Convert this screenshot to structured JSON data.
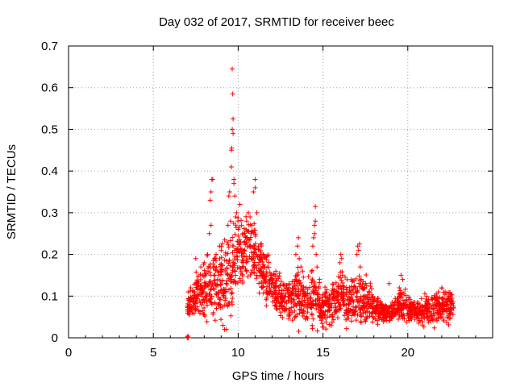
{
  "chart_data": {
    "type": "scatter",
    "title": "Day 032 of 2017, SRMTID for receiver beec",
    "xlabel": "GPS time / hours",
    "ylabel": "SRMTID / TECUs",
    "xlim": [
      0,
      25
    ],
    "ylim": [
      0,
      0.7
    ],
    "x_ticks": [
      0,
      5,
      10,
      15,
      20
    ],
    "x_tick_labels": [
      "0",
      "5",
      "10",
      "15",
      "20"
    ],
    "y_ticks": [
      0,
      0.1,
      0.2,
      0.3,
      0.4,
      0.5,
      0.6,
      0.7
    ],
    "y_tick_labels": [
      "0",
      "0.1",
      "0.2",
      "0.3",
      "0.4",
      "0.5",
      "0.6",
      "0.7"
    ],
    "grid": true,
    "marker": "+",
    "color": "#ff0000",
    "seed": 32,
    "envelope": [
      [
        7.0,
        0.07,
        0.03
      ],
      [
        7.5,
        0.1,
        0.04
      ],
      [
        8.0,
        0.11,
        0.05
      ],
      [
        8.5,
        0.13,
        0.07
      ],
      [
        9.0,
        0.12,
        0.07
      ],
      [
        9.5,
        0.15,
        0.09
      ],
      [
        10.0,
        0.19,
        0.07
      ],
      [
        10.5,
        0.22,
        0.06
      ],
      [
        11.0,
        0.21,
        0.06
      ],
      [
        11.5,
        0.15,
        0.05
      ],
      [
        12.0,
        0.12,
        0.05
      ],
      [
        12.5,
        0.1,
        0.04
      ],
      [
        13.0,
        0.09,
        0.04
      ],
      [
        13.5,
        0.11,
        0.06
      ],
      [
        14.0,
        0.08,
        0.04
      ],
      [
        14.5,
        0.1,
        0.06
      ],
      [
        15.0,
        0.07,
        0.04
      ],
      [
        15.5,
        0.08,
        0.04
      ],
      [
        16.0,
        0.11,
        0.05
      ],
      [
        16.5,
        0.08,
        0.04
      ],
      [
        17.0,
        0.1,
        0.05
      ],
      [
        17.5,
        0.09,
        0.05
      ],
      [
        18.0,
        0.07,
        0.03
      ],
      [
        18.5,
        0.06,
        0.02
      ],
      [
        19.0,
        0.06,
        0.02
      ],
      [
        19.5,
        0.08,
        0.03
      ],
      [
        20.0,
        0.07,
        0.03
      ],
      [
        20.5,
        0.06,
        0.02
      ],
      [
        21.0,
        0.07,
        0.03
      ],
      [
        21.5,
        0.07,
        0.03
      ],
      [
        22.0,
        0.07,
        0.03
      ],
      [
        22.5,
        0.08,
        0.03
      ],
      [
        22.7,
        0.07,
        0.02
      ]
    ],
    "points": [
      [
        7.0,
        0.0
      ],
      [
        7.0,
        0.002
      ],
      [
        7.05,
        0.0
      ],
      [
        7.05,
        0.004
      ],
      [
        7.05,
        0.11
      ],
      [
        7.1,
        0.09
      ],
      [
        7.2,
        0.12
      ],
      [
        7.3,
        0.06
      ],
      [
        7.5,
        0.19
      ],
      [
        7.8,
        0.17
      ],
      [
        7.9,
        0.15
      ],
      [
        8.0,
        0.18
      ],
      [
        8.2,
        0.2
      ],
      [
        8.3,
        0.25
      ],
      [
        8.4,
        0.27
      ],
      [
        8.35,
        0.33
      ],
      [
        8.4,
        0.35
      ],
      [
        8.45,
        0.38
      ],
      [
        8.5,
        0.38
      ],
      [
        8.6,
        0.19
      ],
      [
        8.7,
        0.2
      ],
      [
        8.8,
        0.16
      ],
      [
        8.9,
        0.22
      ],
      [
        9.0,
        0.21
      ],
      [
        9.1,
        0.03
      ],
      [
        9.2,
        0.02
      ],
      [
        9.3,
        0.02
      ],
      [
        9.35,
        0.23
      ],
      [
        9.4,
        0.27
      ],
      [
        9.45,
        0.34
      ],
      [
        9.5,
        0.35
      ],
      [
        9.55,
        0.28
      ],
      [
        9.6,
        0.41
      ],
      [
        9.6,
        0.45
      ],
      [
        9.62,
        0.455
      ],
      [
        9.65,
        0.5
      ],
      [
        9.7,
        0.49
      ],
      [
        9.7,
        0.525
      ],
      [
        9.68,
        0.585
      ],
      [
        9.65,
        0.645
      ],
      [
        9.75,
        0.37
      ],
      [
        9.75,
        0.38
      ],
      [
        9.8,
        0.34
      ],
      [
        9.85,
        0.29
      ],
      [
        9.9,
        0.3
      ],
      [
        10.0,
        0.26
      ],
      [
        10.1,
        0.32
      ],
      [
        10.2,
        0.27
      ],
      [
        10.3,
        0.25
      ],
      [
        10.5,
        0.28
      ],
      [
        10.6,
        0.3
      ],
      [
        10.7,
        0.29
      ],
      [
        10.8,
        0.27
      ],
      [
        10.9,
        0.35
      ],
      [
        11.0,
        0.36
      ],
      [
        11.0,
        0.38
      ],
      [
        11.1,
        0.3
      ],
      [
        11.2,
        0.22
      ],
      [
        11.3,
        0.21
      ],
      [
        11.5,
        0.2
      ],
      [
        11.7,
        0.17
      ],
      [
        12.0,
        0.14
      ],
      [
        13.4,
        0.2
      ],
      [
        13.5,
        0.22
      ],
      [
        13.55,
        0.24
      ],
      [
        13.6,
        0.19
      ],
      [
        13.7,
        0.17
      ],
      [
        13.8,
        0.16
      ],
      [
        14.4,
        0.22
      ],
      [
        14.45,
        0.24
      ],
      [
        14.5,
        0.25
      ],
      [
        14.5,
        0.27
      ],
      [
        14.55,
        0.28
      ],
      [
        14.55,
        0.315
      ],
      [
        14.6,
        0.2
      ],
      [
        14.65,
        0.17
      ],
      [
        14.8,
        0.14
      ],
      [
        16.0,
        0.18
      ],
      [
        16.05,
        0.2
      ],
      [
        16.1,
        0.19
      ],
      [
        16.15,
        0.15
      ],
      [
        17.0,
        0.2
      ],
      [
        17.05,
        0.22
      ],
      [
        17.1,
        0.21
      ],
      [
        17.15,
        0.225
      ],
      [
        17.2,
        0.17
      ],
      [
        17.25,
        0.14
      ],
      [
        17.3,
        0.12
      ],
      [
        18.9,
        0.13
      ],
      [
        19.5,
        0.12
      ],
      [
        19.6,
        0.15
      ],
      [
        19.7,
        0.14
      ],
      [
        21.8,
        0.11
      ],
      [
        22.0,
        0.12
      ],
      [
        22.2,
        0.11
      ],
      [
        22.4,
        0.1
      ]
    ]
  }
}
